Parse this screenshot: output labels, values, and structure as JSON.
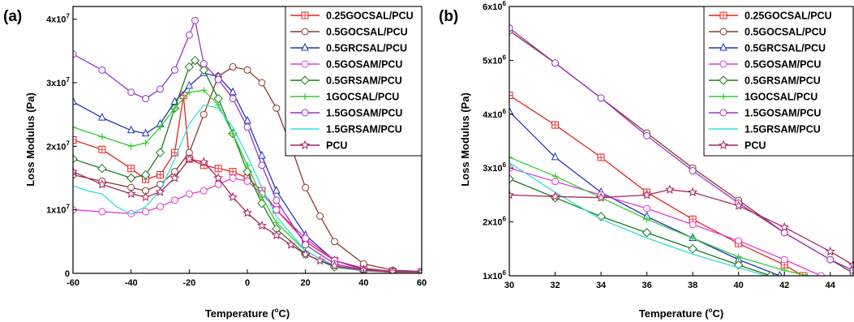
{
  "chart_data": [
    {
      "type": "line",
      "panel_label": "(a)",
      "xlabel_main": "Temperature (",
      "xlabel_deg": "o",
      "xlabel_unit": "C)",
      "ylabel": "Loss Modulus (Pa)",
      "xlim": [
        -60,
        60
      ],
      "ylim": [
        0,
        42000000
      ],
      "xticks": [
        -60,
        -40,
        -20,
        0,
        20,
        40,
        60
      ],
      "yticks": [
        {
          "value": 0,
          "mantissa": "0",
          "exp": ""
        },
        {
          "value": 10000000,
          "mantissa": "1x10",
          "exp": "7"
        },
        {
          "value": 20000000,
          "mantissa": "2x10",
          "exp": "7"
        },
        {
          "value": 30000000,
          "mantissa": "3x10",
          "exp": "7"
        },
        {
          "value": 40000000,
          "mantissa": "4x10",
          "exp": "7"
        }
      ],
      "legend_position": "top-right",
      "series": [
        {
          "name": "0.25GOCSAL/PCU",
          "color": "#e8221f",
          "marker": "square-plus",
          "x": [
            -60,
            -50,
            -40,
            -35,
            -30,
            -25,
            -22,
            -20,
            -15,
            -10,
            -5,
            0,
            5,
            10,
            20,
            30,
            40,
            50,
            60
          ],
          "y": [
            21000000.0,
            19500000.0,
            16500000.0,
            14800000.0,
            15500000.0,
            19000000.0,
            28000000.0,
            18000000.0,
            17000000.0,
            16500000.0,
            16000000.0,
            15000000.0,
            13000000.0,
            10000000.0,
            5000000.0,
            2000000.0,
            800000.0,
            300000.0,
            200000.0
          ]
        },
        {
          "name": "0.5GOCSAL/PCU",
          "color": "#8b3a2a",
          "marker": "circle",
          "x": [
            -60,
            -50,
            -40,
            -35,
            -30,
            -25,
            -20,
            -15,
            -10,
            -5,
            0,
            5,
            10,
            15,
            20,
            25,
            30,
            40,
            50,
            60
          ],
          "y": [
            15500000.0,
            14500000.0,
            13500000.0,
            13000000.0,
            14000000.0,
            16000000.0,
            19000000.0,
            25000000.0,
            31000000.0,
            32500000.0,
            32000000.0,
            30000000.0,
            26000000.0,
            20000000.0,
            13500000.0,
            9000000.0,
            5000000.0,
            1500000.0,
            500000.0,
            300000.0
          ]
        },
        {
          "name": "0.5GRCSAL/PCU",
          "color": "#2233bb",
          "marker": "triangle",
          "x": [
            -60,
            -50,
            -40,
            -35,
            -30,
            -25,
            -20,
            -15,
            -10,
            -5,
            0,
            5,
            10,
            20,
            30,
            40,
            50,
            60
          ],
          "y": [
            27000000.0,
            24500000.0,
            22500000.0,
            22000000.0,
            23500000.0,
            27000000.0,
            29500000.0,
            31500000.0,
            31000000.0,
            28500000.0,
            24000000.0,
            18500000.0,
            13000000.0,
            6000000.0,
            2000000.0,
            600000.0,
            200000.0,
            200000.0
          ]
        },
        {
          "name": "0.5GOSAM/PCU",
          "color": "#e53ad6",
          "marker": "circle",
          "x": [
            -60,
            -50,
            -40,
            -35,
            -30,
            -25,
            -20,
            -15,
            -10,
            -5,
            0,
            5,
            10,
            20,
            30,
            40,
            50,
            60
          ],
          "y": [
            10000000.0,
            9700000.0,
            9400000.0,
            9700000.0,
            10500000.0,
            11500000.0,
            12500000.0,
            13000000.0,
            14000000.0,
            15000000.0,
            14500000.0,
            12500000.0,
            10000000.0,
            5500000.0,
            2000000.0,
            500000.0,
            200000.0,
            200000.0
          ]
        },
        {
          "name": "0.5GRSAM/PCU",
          "color": "#1e7a1e",
          "marker": "diamond",
          "x": [
            -60,
            -50,
            -40,
            -35,
            -30,
            -25,
            -20,
            -18,
            -15,
            -10,
            -5,
            0,
            5,
            10,
            20,
            30,
            40,
            50,
            60
          ],
          "y": [
            18000000.0,
            16500000.0,
            15000000.0,
            15500000.0,
            19000000.0,
            26000000.0,
            32500000.0,
            33500000.0,
            32000000.0,
            27500000.0,
            22000000.0,
            16000000.0,
            11000000.0,
            7000000.0,
            3000000.0,
            1000000.0,
            400000.0,
            200000.0,
            200000.0
          ]
        },
        {
          "name": "1GOCSAL/PCU",
          "color": "#33cc33",
          "marker": "plus",
          "x": [
            -60,
            -50,
            -40,
            -35,
            -30,
            -25,
            -20,
            -15,
            -10,
            -5,
            0,
            5,
            10,
            20,
            30,
            40,
            50,
            60
          ],
          "y": [
            23000000.0,
            21500000.0,
            20000000.0,
            20500000.0,
            23000000.0,
            26000000.0,
            28500000.0,
            28800000.0,
            26500000.0,
            22000000.0,
            17000000.0,
            12000000.0,
            8000000.0,
            3500000.0,
            1200000.0,
            400000.0,
            200000.0,
            200000.0
          ]
        },
        {
          "name": "1.5GOSAM/PCU",
          "color": "#9933cc",
          "marker": "circle",
          "x": [
            -60,
            -50,
            -40,
            -35,
            -30,
            -25,
            -20,
            -18,
            -15,
            -10,
            -5,
            0,
            5,
            10,
            20,
            30,
            40,
            50,
            60
          ],
          "y": [
            34500000.0,
            32000000.0,
            28500000.0,
            27500000.0,
            29000000.0,
            32000000.0,
            37500000.0,
            39800000.0,
            33000000.0,
            30500000.0,
            27500000.0,
            23000000.0,
            17000000.0,
            11500000.0,
            4500000.0,
            1500000.0,
            500000.0,
            300000.0,
            300000.0
          ]
        },
        {
          "name": "1.5GRSAM/PCU",
          "color": "#33dddd",
          "marker": "none",
          "x": [
            -60,
            -55,
            -50,
            -45,
            -40,
            -35,
            -30,
            -25,
            -20,
            -15,
            -10,
            -5,
            0,
            5,
            10,
            20,
            30,
            40,
            50,
            60
          ],
          "y": [
            13800000.0,
            13000000.0,
            12500000.0,
            10500000.0,
            9300000.0,
            10500000.0,
            13000000.0,
            18000000.0,
            23500000.0,
            26500000.0,
            26000000.0,
            23000000.0,
            18500000.0,
            13500000.0,
            9000000.0,
            3500000.0,
            1200000.0,
            400000.0,
            200000.0,
            200000.0
          ]
        },
        {
          "name": "PCU",
          "color": "#aa2266",
          "marker": "star",
          "x": [
            -60,
            -50,
            -40,
            -35,
            -30,
            -25,
            -20,
            -15,
            -10,
            -5,
            0,
            5,
            10,
            15,
            20,
            25,
            30,
            40,
            50,
            60
          ],
          "y": [
            16000000.0,
            14000000.0,
            12500000.0,
            12000000.0,
            12800000.0,
            15000000.0,
            18000000.0,
            17500000.0,
            15000000.0,
            12000000.0,
            9500000.0,
            7500000.0,
            6000000.0,
            4500000.0,
            3000000.0,
            2000000.0,
            1200000.0,
            500000.0,
            200000.0,
            200000.0
          ]
        }
      ]
    },
    {
      "type": "line",
      "panel_label": "(b)",
      "xlabel_main": "Temperature (",
      "xlabel_deg": "o",
      "xlabel_unit": "C)",
      "ylabel": "Loss Modulus (Pa)",
      "xlim": [
        30,
        45
      ],
      "ylim": [
        1000000,
        6000000
      ],
      "xticks": [
        30,
        32,
        34,
        36,
        38,
        40,
        42,
        44
      ],
      "yticks": [
        {
          "value": 1000000,
          "mantissa": "1x10",
          "exp": "6"
        },
        {
          "value": 2000000,
          "mantissa": "2x10",
          "exp": "6"
        },
        {
          "value": 3000000,
          "mantissa": "3x10",
          "exp": "6"
        },
        {
          "value": 4000000,
          "mantissa": "4x10",
          "exp": "6"
        },
        {
          "value": 5000000,
          "mantissa": "5x10",
          "exp": "6"
        },
        {
          "value": 6000000,
          "mantissa": "6x10",
          "exp": "6"
        }
      ],
      "legend_position": "top-right",
      "series": [
        {
          "name": "0.25GOCSAL/PCU",
          "color": "#e8221f",
          "marker": "square-plus",
          "x": [
            30,
            32,
            34,
            36,
            38,
            40,
            42,
            42.8
          ],
          "y": [
            4350000.0,
            3800000.0,
            3200000.0,
            2550000.0,
            2050000.0,
            1600000.0,
            1200000.0,
            1000000.0
          ]
        },
        {
          "name": "0.5GOCSAL/PCU",
          "color": "#8b3a2a",
          "marker": "circle",
          "x": [
            30,
            32,
            34,
            36,
            38,
            40,
            42,
            44,
            45
          ],
          "y": [
            5550000.0,
            4950000.0,
            4300000.0,
            3650000.0,
            3000000.0,
            2400000.0,
            1800000.0,
            1300000.0,
            1050000.0
          ]
        },
        {
          "name": "0.5GRCSAL/PCU",
          "color": "#2233bb",
          "marker": "triangle",
          "x": [
            30,
            32,
            34,
            36,
            38,
            40,
            41.8
          ],
          "y": [
            4050000.0,
            3200000.0,
            2550000.0,
            2100000.0,
            1700000.0,
            1300000.0,
            1000000.0
          ]
        },
        {
          "name": "0.5GOSAM/PCU",
          "color": "#e53ad6",
          "marker": "circle",
          "x": [
            30,
            32,
            34,
            36,
            38,
            40,
            42,
            43.6
          ],
          "y": [
            3000000.0,
            2750000.0,
            2500000.0,
            2250000.0,
            1950000.0,
            1650000.0,
            1300000.0,
            1000000.0
          ]
        },
        {
          "name": "0.5GRSAM/PCU",
          "color": "#1e7a1e",
          "marker": "diamond",
          "x": [
            30,
            32,
            34,
            36,
            38,
            40,
            41.4
          ],
          "y": [
            2800000.0,
            2450000.0,
            2100000.0,
            1800000.0,
            1500000.0,
            1200000.0,
            1000000.0
          ]
        },
        {
          "name": "1GOCSAL/PCU",
          "color": "#33cc33",
          "marker": "plus",
          "x": [
            30,
            32,
            34,
            36,
            38,
            40,
            42,
            43
          ],
          "y": [
            3200000.0,
            2850000.0,
            2450000.0,
            2050000.0,
            1700000.0,
            1350000.0,
            1100000.0,
            1000000.0
          ]
        },
        {
          "name": "1.5GOSAM/PCU",
          "color": "#9933cc",
          "marker": "circle",
          "x": [
            30,
            32,
            34,
            36,
            38,
            40,
            42,
            44,
            45
          ],
          "y": [
            5600000.0,
            4950000.0,
            4300000.0,
            3600000.0,
            2950000.0,
            2350000.0,
            1800000.0,
            1300000.0,
            1100000.0
          ]
        },
        {
          "name": "1.5GRSAM/PCU",
          "color": "#33dddd",
          "marker": "none",
          "x": [
            30,
            32,
            34,
            36,
            38,
            40,
            41.2
          ],
          "y": [
            3100000.0,
            2550000.0,
            2050000.0,
            1700000.0,
            1400000.0,
            1150000.0,
            1000000.0
          ]
        },
        {
          "name": "PCU",
          "color": "#aa2266",
          "marker": "star",
          "x": [
            30,
            32,
            34,
            36,
            37,
            38,
            40,
            42,
            44,
            45
          ],
          "y": [
            2500000.0,
            2470000.0,
            2450000.0,
            2500000.0,
            2600000.0,
            2550000.0,
            2300000.0,
            1900000.0,
            1450000.0,
            1200000.0
          ]
        }
      ]
    }
  ]
}
